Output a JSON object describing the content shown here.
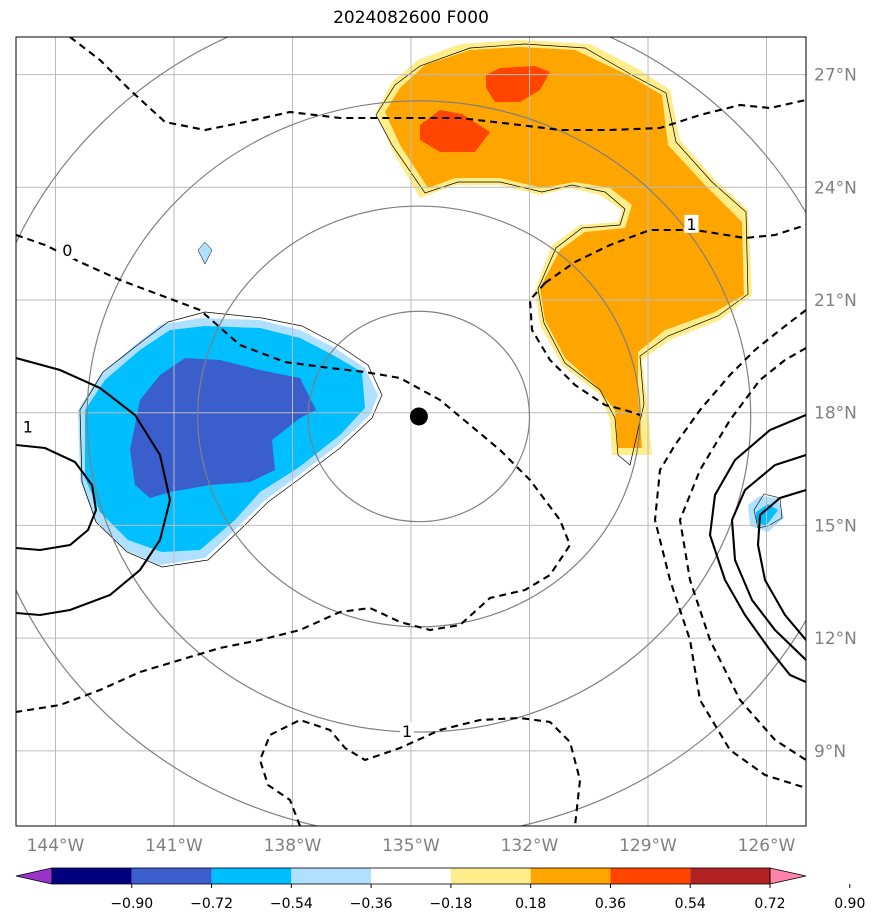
{
  "title": "2024082600 F000",
  "colors": {
    "grid": "#bbbbbb",
    "range_rings": "#808080",
    "center_marker": "#000000",
    "contour": "#000000"
  },
  "map": {
    "lon_range": [
      -145.0,
      -125.0
    ],
    "lat_range": [
      7.0,
      28.0
    ],
    "lon_ticks": [
      {
        "value": -144,
        "label": "144°W"
      },
      {
        "value": -141,
        "label": "141°W"
      },
      {
        "value": -138,
        "label": "138°W"
      },
      {
        "value": -135,
        "label": "135°W"
      },
      {
        "value": -132,
        "label": "132°W"
      },
      {
        "value": -129,
        "label": "129°W"
      },
      {
        "value": -126,
        "label": "126°W"
      }
    ],
    "lat_ticks": [
      {
        "value": 9,
        "label": "9°N"
      },
      {
        "value": 12,
        "label": "12°N"
      },
      {
        "value": 15,
        "label": "15°N"
      },
      {
        "value": 18,
        "label": "18°N"
      },
      {
        "value": 21,
        "label": "21°N"
      },
      {
        "value": 24,
        "label": "24°N"
      },
      {
        "value": 27,
        "label": "27°N"
      }
    ],
    "center": {
      "lon": -134.8,
      "lat": 17.9
    },
    "range_ring_radii_deg": [
      2.8,
      5.6,
      8.4,
      11.2
    ]
  },
  "contour_labels": [
    {
      "text": "0",
      "lon": -143.7,
      "lat": 22.3
    },
    {
      "text": "1",
      "lon": -144.7,
      "lat": 17.6
    },
    {
      "text": "1",
      "lon": -127.9,
      "lat": 23.0
    },
    {
      "text": "1",
      "lon": -135.1,
      "lat": 9.5
    }
  ],
  "colorbar": {
    "levels": [
      "−0.90",
      "−0.72",
      "−0.54",
      "−0.36",
      "−0.18",
      "0.18",
      "0.36",
      "0.54",
      "0.72",
      "0.90"
    ],
    "colors": [
      "#9933cc",
      "#000080",
      "#3a5fcd",
      "#00bfff",
      "#b0e0ff",
      "#ffffff",
      "#ffec8b",
      "#ffa500",
      "#ff4500",
      "#b22222",
      "#ff82ab"
    ]
  }
}
